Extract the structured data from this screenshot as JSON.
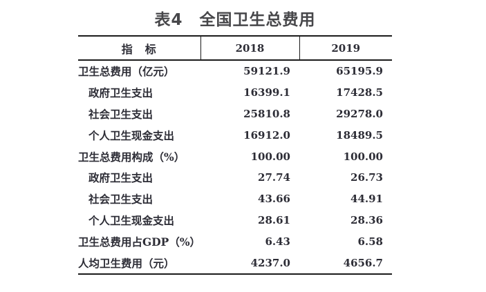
{
  "title": {
    "text": "表4　全国卫生总费用"
  },
  "table": {
    "header": {
      "indicator": "指　标",
      "col_2018": "2018",
      "col_2019": "2019"
    },
    "rows": [
      {
        "label": "卫生总费用（亿元）",
        "indent": false,
        "y2018": "59121.9",
        "y2019": "65195.9"
      },
      {
        "label": "政府卫生支出",
        "indent": true,
        "y2018": "16399.1",
        "y2019": "17428.5"
      },
      {
        "label": "社会卫生支出",
        "indent": true,
        "y2018": "25810.8",
        "y2019": "29278.0"
      },
      {
        "label": "个人卫生现金支出",
        "indent": true,
        "y2018": "16912.0",
        "y2019": "18489.5"
      },
      {
        "label": "卫生总费用构成（%）",
        "indent": false,
        "y2018": "100.00",
        "y2019": "100.00"
      },
      {
        "label": "政府卫生支出",
        "indent": true,
        "y2018": "27.74",
        "y2019": "26.73"
      },
      {
        "label": "社会卫生支出",
        "indent": true,
        "y2018": "43.66",
        "y2019": "44.91"
      },
      {
        "label": "个人卫生现金支出",
        "indent": true,
        "y2018": "28.61",
        "y2019": "28.36"
      },
      {
        "label": "卫生总费用占GDP（%）",
        "indent": false,
        "y2018": "6.43",
        "y2019": "6.58"
      },
      {
        "label": "人均卫生费用（元）",
        "indent": false,
        "y2018": "4237.0",
        "y2019": "4656.7"
      }
    ]
  },
  "colors": {
    "title_text": "#47474a",
    "body_text": "#2d2d36",
    "border": "#1a1a1a",
    "background": "#ffffff"
  }
}
